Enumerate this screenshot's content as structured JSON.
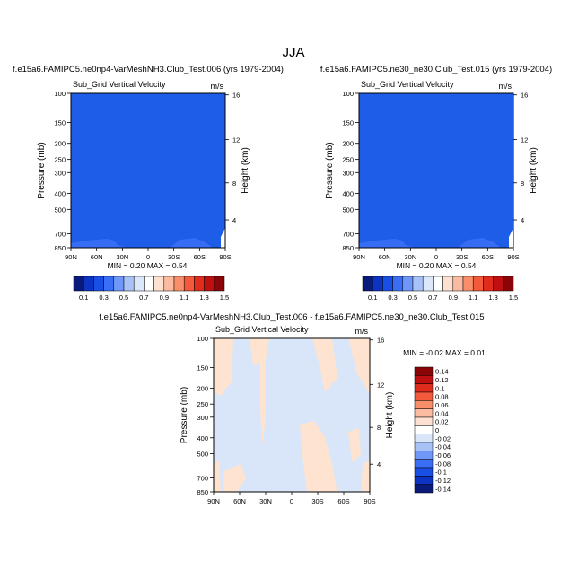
{
  "page": {
    "title": "JJA"
  },
  "chart_data": [
    {
      "type": "heatmap",
      "title": "f.e15a6.FAMIPC5.ne0np4-VarMeshNH3.Club_Test.006 (yrs 1979-2004)",
      "subtitle": "Sub_Grid Vertical Velocity",
      "units": "m/s",
      "xlabel": "",
      "ylabel": "Pressure (mb)",
      "y2label": "Height (km)",
      "x_ticks": [
        "90N",
        "60N",
        "30N",
        "0",
        "30S",
        "60S",
        "90S"
      ],
      "y_ticks": [
        "100",
        "150",
        "200",
        "250",
        "300",
        "400",
        "500",
        "700",
        "850"
      ],
      "y2_ticks": [
        "16",
        "12",
        "8",
        "4"
      ],
      "min_label": "MIN =   0.20",
      "max_label": "MAX =   0.54",
      "field_color": "#1e5de8",
      "colorbar": {
        "labels": [
          "0.1",
          "0.3",
          "0.5",
          "0.7",
          "0.9",
          "1.1",
          "1.3",
          "1.5"
        ],
        "colors": [
          "#0a1a7a",
          "#0d33c2",
          "#1a4fe6",
          "#3a6ff5",
          "#6f97f7",
          "#a8c2f8",
          "#dbe8fb",
          "#ffffff",
          "#fde0d0",
          "#fbbba0",
          "#f88f6a",
          "#f25a3b",
          "#e02c1c",
          "#c00f10",
          "#8a0408"
        ]
      }
    },
    {
      "type": "heatmap",
      "title": "f.e15a6.FAMIPC5.ne30_ne30.Club_Test.015 (yrs 1979-2004)",
      "subtitle": "Sub_Grid Vertical Velocity",
      "units": "m/s",
      "xlabel": "",
      "ylabel": "Pressure (mb)",
      "y2label": "Height (km)",
      "x_ticks": [
        "90N",
        "60N",
        "30N",
        "0",
        "30S",
        "60S",
        "90S"
      ],
      "y_ticks": [
        "100",
        "150",
        "200",
        "250",
        "300",
        "400",
        "500",
        "700",
        "850"
      ],
      "y2_ticks": [
        "16",
        "12",
        "8",
        "4"
      ],
      "min_label": "MIN =   0.20",
      "max_label": "MAX =   0.54",
      "field_color": "#1e5de8",
      "colorbar": {
        "labels": [
          "0.1",
          "0.3",
          "0.5",
          "0.7",
          "0.9",
          "1.1",
          "1.3",
          "1.5"
        ],
        "colors": [
          "#0a1a7a",
          "#0d33c2",
          "#1a4fe6",
          "#3a6ff5",
          "#6f97f7",
          "#a8c2f8",
          "#dbe8fb",
          "#ffffff",
          "#fde0d0",
          "#fbbba0",
          "#f88f6a",
          "#f25a3b",
          "#e02c1c",
          "#c00f10",
          "#8a0408"
        ]
      }
    },
    {
      "type": "heatmap",
      "title": "f.e15a6.FAMIPC5.ne0np4-VarMeshNH3.Club_Test.006 - f.e15a6.FAMIPC5.ne30_ne30.Club_Test.015",
      "subtitle": "Sub_Grid Vertical Velocity",
      "units": "m/s",
      "xlabel": "",
      "ylabel": "Pressure (mb)",
      "y2label": "Height (km)",
      "x_ticks": [
        "90N",
        "60N",
        "30N",
        "0",
        "30S",
        "60S",
        "90S"
      ],
      "y_ticks": [
        "100",
        "150",
        "200",
        "250",
        "300",
        "400",
        "500",
        "700",
        "850"
      ],
      "y2_ticks": [
        "16",
        "12",
        "8",
        "4"
      ],
      "min_label": "MIN = -0.02",
      "max_label": "MAX =   0.01",
      "field_color": "#d9e6f9",
      "colorbar": {
        "labels": [
          "0.14",
          "0.12",
          "0.1",
          "0.08",
          "0.06",
          "0.04",
          "0.02",
          "0",
          "-0.02",
          "-0.04",
          "-0.06",
          "-0.08",
          "-0.1",
          "-0.12",
          "-0.14"
        ],
        "colors": [
          "#8a0408",
          "#c00f10",
          "#e02c1c",
          "#f25a3b",
          "#f88f6a",
          "#fbbba0",
          "#fde0d0",
          "#ffffff",
          "#d9e6f9",
          "#a8c2f8",
          "#6f97f7",
          "#3a6ff5",
          "#1a4fe6",
          "#0d33c2",
          "#0a1a7a"
        ]
      }
    }
  ]
}
